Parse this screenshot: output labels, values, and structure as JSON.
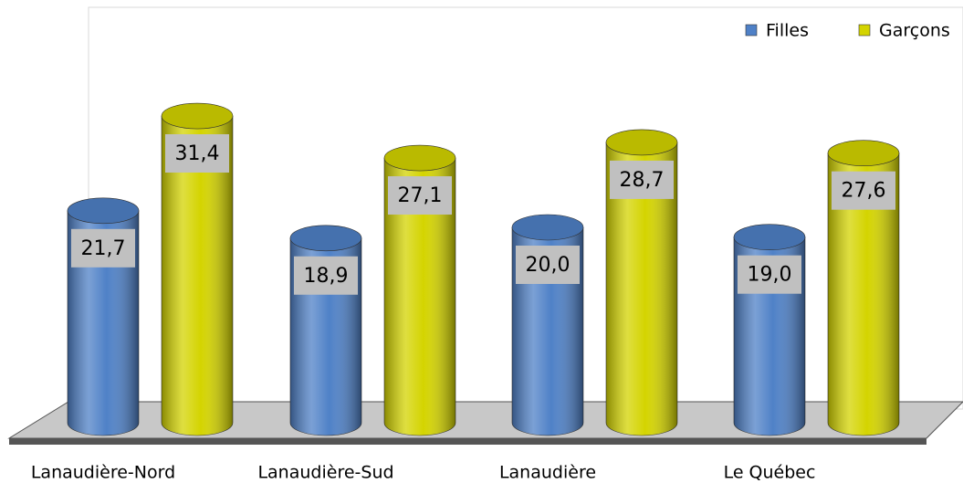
{
  "chart_data": {
    "type": "bar3d",
    "categories": [
      "Lanaudière-Nord",
      "Lanaudière-Sud",
      "Lanaudière",
      "Le Québec"
    ],
    "series": [
      {
        "name": "Filles",
        "color": "#4f81c7",
        "values": [
          21.7,
          18.9,
          20.0,
          19.0
        ],
        "value_labels": [
          "21,7",
          "18,9",
          "20,0",
          "19,0"
        ]
      },
      {
        "name": "Garçons",
        "color": "#d4d400",
        "values": [
          31.4,
          27.1,
          28.7,
          27.6
        ],
        "value_labels": [
          "31,4",
          "27,1",
          "28,7",
          "27,6"
        ]
      }
    ],
    "legend": "top-right"
  }
}
